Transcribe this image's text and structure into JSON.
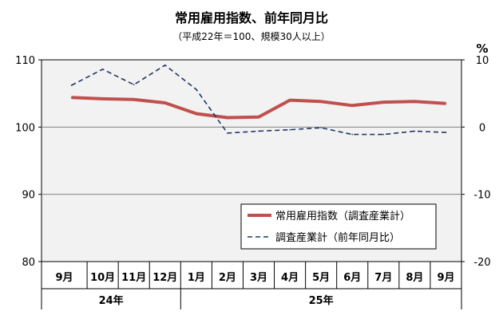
{
  "chart_data": {
    "type": "line",
    "title": "常用雇用指数、前年同月比",
    "subtitle": "（平成22年＝100、規模30人以上）",
    "x": [
      "9月",
      "10月",
      "11月",
      "12月",
      "1月",
      "2月",
      "3月",
      "4月",
      "5月",
      "6月",
      "7月",
      "8月",
      "9月"
    ],
    "x_groups": [
      {
        "label": "24年",
        "from": 0,
        "to": 3
      },
      {
        "label": "25年",
        "from": 4,
        "to": 12
      }
    ],
    "y_left": {
      "min": 80,
      "max": 110,
      "ticks": [
        80,
        90,
        100,
        110
      ]
    },
    "y_right": {
      "min": -20,
      "max": 10,
      "unit": "%",
      "ticks": [
        -20,
        -10,
        0,
        10
      ],
      "tick_labels": [
        "-20",
        "-10",
        "0",
        "10"
      ]
    },
    "grid": "horizontal",
    "legend_position": "lower-right",
    "series": [
      {
        "name": "常用雇用指数（調査産業計）",
        "axis": "left",
        "style": "solid",
        "color": "#c0504d",
        "values": [
          104.4,
          104.2,
          104.1,
          103.6,
          102.0,
          101.4,
          101.5,
          104.0,
          103.8,
          103.2,
          103.7,
          103.8,
          103.5
        ]
      },
      {
        "name": "調査産業計（前年同月比）",
        "axis": "right",
        "style": "dashed",
        "color": "#1f3864",
        "values": [
          6.2,
          8.6,
          6.3,
          9.2,
          5.6,
          -0.9,
          -0.6,
          -0.4,
          -0.1,
          -1.1,
          -1.1,
          -0.6,
          -0.8
        ]
      }
    ]
  }
}
